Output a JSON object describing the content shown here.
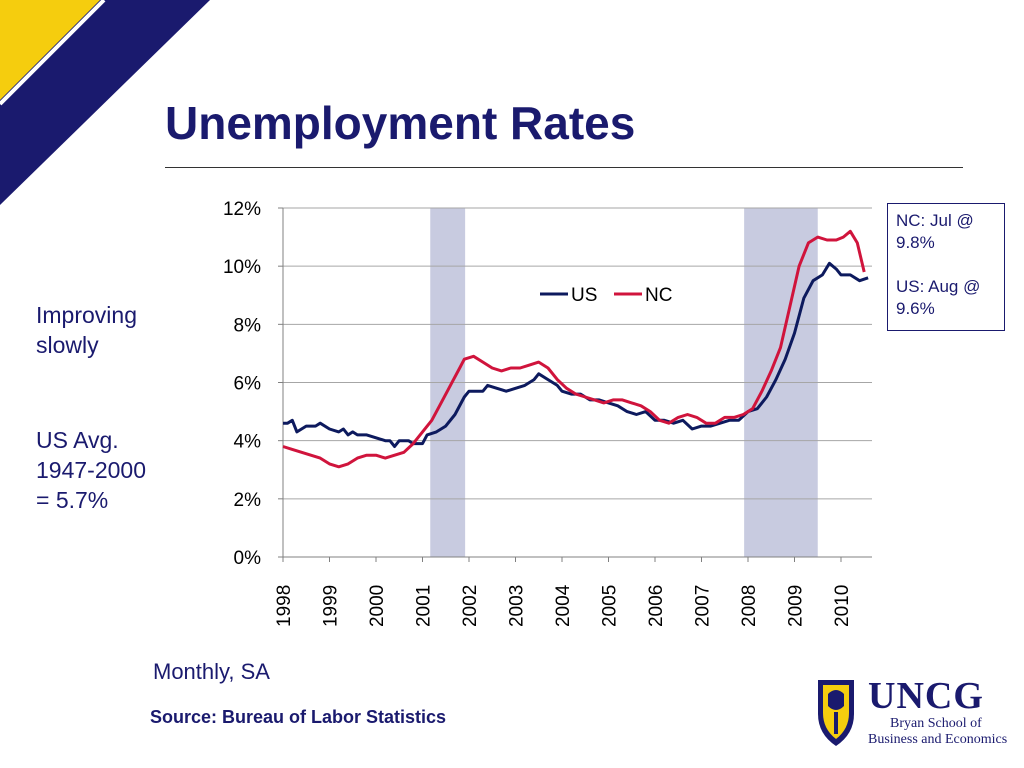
{
  "title": "Unemployment Rates",
  "notes": {
    "improving": "Improving\nslowly",
    "us_avg": "US Avg.\n1947-2000\n= 5.7%"
  },
  "callout": {
    "nc": "NC: Jul @ 9.8%",
    "us": "US: Aug @ 9.6%"
  },
  "monthly_label": "Monthly, SA",
  "source": "Source:  Bureau of Labor Statistics",
  "logo": {
    "name": "UNCG",
    "line1": "Bryan School of",
    "line2": "Business and Economics"
  },
  "colors": {
    "title": "#1a1a6e",
    "us": "#0d1a5e",
    "nc": "#d0143c",
    "recession": "#c8cbe0",
    "corner_yellow": "#f5cd0e",
    "corner_navy": "#1a1a6e"
  },
  "chart_data": {
    "type": "line",
    "ylim": [
      0,
      12
    ],
    "y_ticks": [
      "0%",
      "2%",
      "4%",
      "6%",
      "8%",
      "10%",
      "12%"
    ],
    "x_range": [
      1998,
      2010.667
    ],
    "x_ticks": [
      "1998",
      "1999",
      "2000",
      "2001",
      "2002",
      "2003",
      "2004",
      "2005",
      "2006",
      "2007",
      "2008",
      "2009",
      "2010"
    ],
    "grid": true,
    "legend": "top-center",
    "recessions": [
      [
        2001.167,
        2001.917
      ],
      [
        2007.917,
        2009.5
      ]
    ],
    "series": [
      {
        "name": "US",
        "color": "#0d1a5e",
        "points": [
          [
            1998.0,
            4.6
          ],
          [
            1998.1,
            4.6
          ],
          [
            1998.2,
            4.7
          ],
          [
            1998.3,
            4.3
          ],
          [
            1998.5,
            4.5
          ],
          [
            1998.7,
            4.5
          ],
          [
            1998.8,
            4.6
          ],
          [
            1999.0,
            4.4
          ],
          [
            1999.2,
            4.3
          ],
          [
            1999.3,
            4.4
          ],
          [
            1999.4,
            4.2
          ],
          [
            1999.5,
            4.3
          ],
          [
            1999.6,
            4.2
          ],
          [
            1999.8,
            4.2
          ],
          [
            2000.0,
            4.1
          ],
          [
            2000.2,
            4.0
          ],
          [
            2000.3,
            4.0
          ],
          [
            2000.4,
            3.8
          ],
          [
            2000.5,
            4.0
          ],
          [
            2000.7,
            4.0
          ],
          [
            2000.8,
            3.9
          ],
          [
            2001.0,
            3.9
          ],
          [
            2001.1,
            4.2
          ],
          [
            2001.3,
            4.3
          ],
          [
            2001.5,
            4.5
          ],
          [
            2001.7,
            4.9
          ],
          [
            2001.9,
            5.5
          ],
          [
            2002.0,
            5.7
          ],
          [
            2002.3,
            5.7
          ],
          [
            2002.4,
            5.9
          ],
          [
            2002.6,
            5.8
          ],
          [
            2002.8,
            5.7
          ],
          [
            2003.0,
            5.8
          ],
          [
            2003.2,
            5.9
          ],
          [
            2003.4,
            6.1
          ],
          [
            2003.5,
            6.3
          ],
          [
            2003.7,
            6.1
          ],
          [
            2003.9,
            5.9
          ],
          [
            2004.0,
            5.7
          ],
          [
            2004.2,
            5.6
          ],
          [
            2004.4,
            5.6
          ],
          [
            2004.6,
            5.4
          ],
          [
            2004.8,
            5.4
          ],
          [
            2005.0,
            5.3
          ],
          [
            2005.2,
            5.2
          ],
          [
            2005.4,
            5.0
          ],
          [
            2005.6,
            4.9
          ],
          [
            2005.8,
            5.0
          ],
          [
            2006.0,
            4.7
          ],
          [
            2006.2,
            4.7
          ],
          [
            2006.4,
            4.6
          ],
          [
            2006.6,
            4.7
          ],
          [
            2006.8,
            4.4
          ],
          [
            2007.0,
            4.5
          ],
          [
            2007.2,
            4.5
          ],
          [
            2007.4,
            4.6
          ],
          [
            2007.6,
            4.7
          ],
          [
            2007.8,
            4.7
          ],
          [
            2008.0,
            5.0
          ],
          [
            2008.2,
            5.1
          ],
          [
            2008.4,
            5.5
          ],
          [
            2008.6,
            6.1
          ],
          [
            2008.8,
            6.8
          ],
          [
            2009.0,
            7.7
          ],
          [
            2009.2,
            8.9
          ],
          [
            2009.4,
            9.5
          ],
          [
            2009.6,
            9.7
          ],
          [
            2009.75,
            10.1
          ],
          [
            2009.9,
            9.9
          ],
          [
            2010.0,
            9.7
          ],
          [
            2010.2,
            9.7
          ],
          [
            2010.4,
            9.5
          ],
          [
            2010.583,
            9.6
          ]
        ]
      },
      {
        "name": "NC",
        "color": "#d0143c",
        "points": [
          [
            1998.0,
            3.8
          ],
          [
            1998.2,
            3.7
          ],
          [
            1998.4,
            3.6
          ],
          [
            1998.6,
            3.5
          ],
          [
            1998.8,
            3.4
          ],
          [
            1999.0,
            3.2
          ],
          [
            1999.2,
            3.1
          ],
          [
            1999.4,
            3.2
          ],
          [
            1999.6,
            3.4
          ],
          [
            1999.8,
            3.5
          ],
          [
            2000.0,
            3.5
          ],
          [
            2000.2,
            3.4
          ],
          [
            2000.4,
            3.5
          ],
          [
            2000.6,
            3.6
          ],
          [
            2000.8,
            3.9
          ],
          [
            2001.0,
            4.3
          ],
          [
            2001.2,
            4.7
          ],
          [
            2001.4,
            5.3
          ],
          [
            2001.6,
            5.9
          ],
          [
            2001.8,
            6.5
          ],
          [
            2001.9,
            6.8
          ],
          [
            2002.1,
            6.9
          ],
          [
            2002.3,
            6.7
          ],
          [
            2002.5,
            6.5
          ],
          [
            2002.7,
            6.4
          ],
          [
            2002.9,
            6.5
          ],
          [
            2003.1,
            6.5
          ],
          [
            2003.3,
            6.6
          ],
          [
            2003.5,
            6.7
          ],
          [
            2003.7,
            6.5
          ],
          [
            2003.9,
            6.1
          ],
          [
            2004.1,
            5.8
          ],
          [
            2004.3,
            5.6
          ],
          [
            2004.5,
            5.5
          ],
          [
            2004.7,
            5.4
          ],
          [
            2004.9,
            5.3
          ],
          [
            2005.1,
            5.4
          ],
          [
            2005.3,
            5.4
          ],
          [
            2005.5,
            5.3
          ],
          [
            2005.7,
            5.2
          ],
          [
            2005.9,
            5.0
          ],
          [
            2006.1,
            4.7
          ],
          [
            2006.3,
            4.6
          ],
          [
            2006.5,
            4.8
          ],
          [
            2006.7,
            4.9
          ],
          [
            2006.9,
            4.8
          ],
          [
            2007.1,
            4.6
          ],
          [
            2007.3,
            4.6
          ],
          [
            2007.5,
            4.8
          ],
          [
            2007.7,
            4.8
          ],
          [
            2007.9,
            4.9
          ],
          [
            2008.1,
            5.1
          ],
          [
            2008.3,
            5.7
          ],
          [
            2008.5,
            6.4
          ],
          [
            2008.7,
            7.2
          ],
          [
            2008.9,
            8.6
          ],
          [
            2009.1,
            10.0
          ],
          [
            2009.3,
            10.8
          ],
          [
            2009.5,
            11.0
          ],
          [
            2009.7,
            10.9
          ],
          [
            2009.9,
            10.9
          ],
          [
            2010.05,
            11.0
          ],
          [
            2010.2,
            11.2
          ],
          [
            2010.35,
            10.8
          ],
          [
            2010.5,
            9.8
          ]
        ]
      }
    ]
  }
}
